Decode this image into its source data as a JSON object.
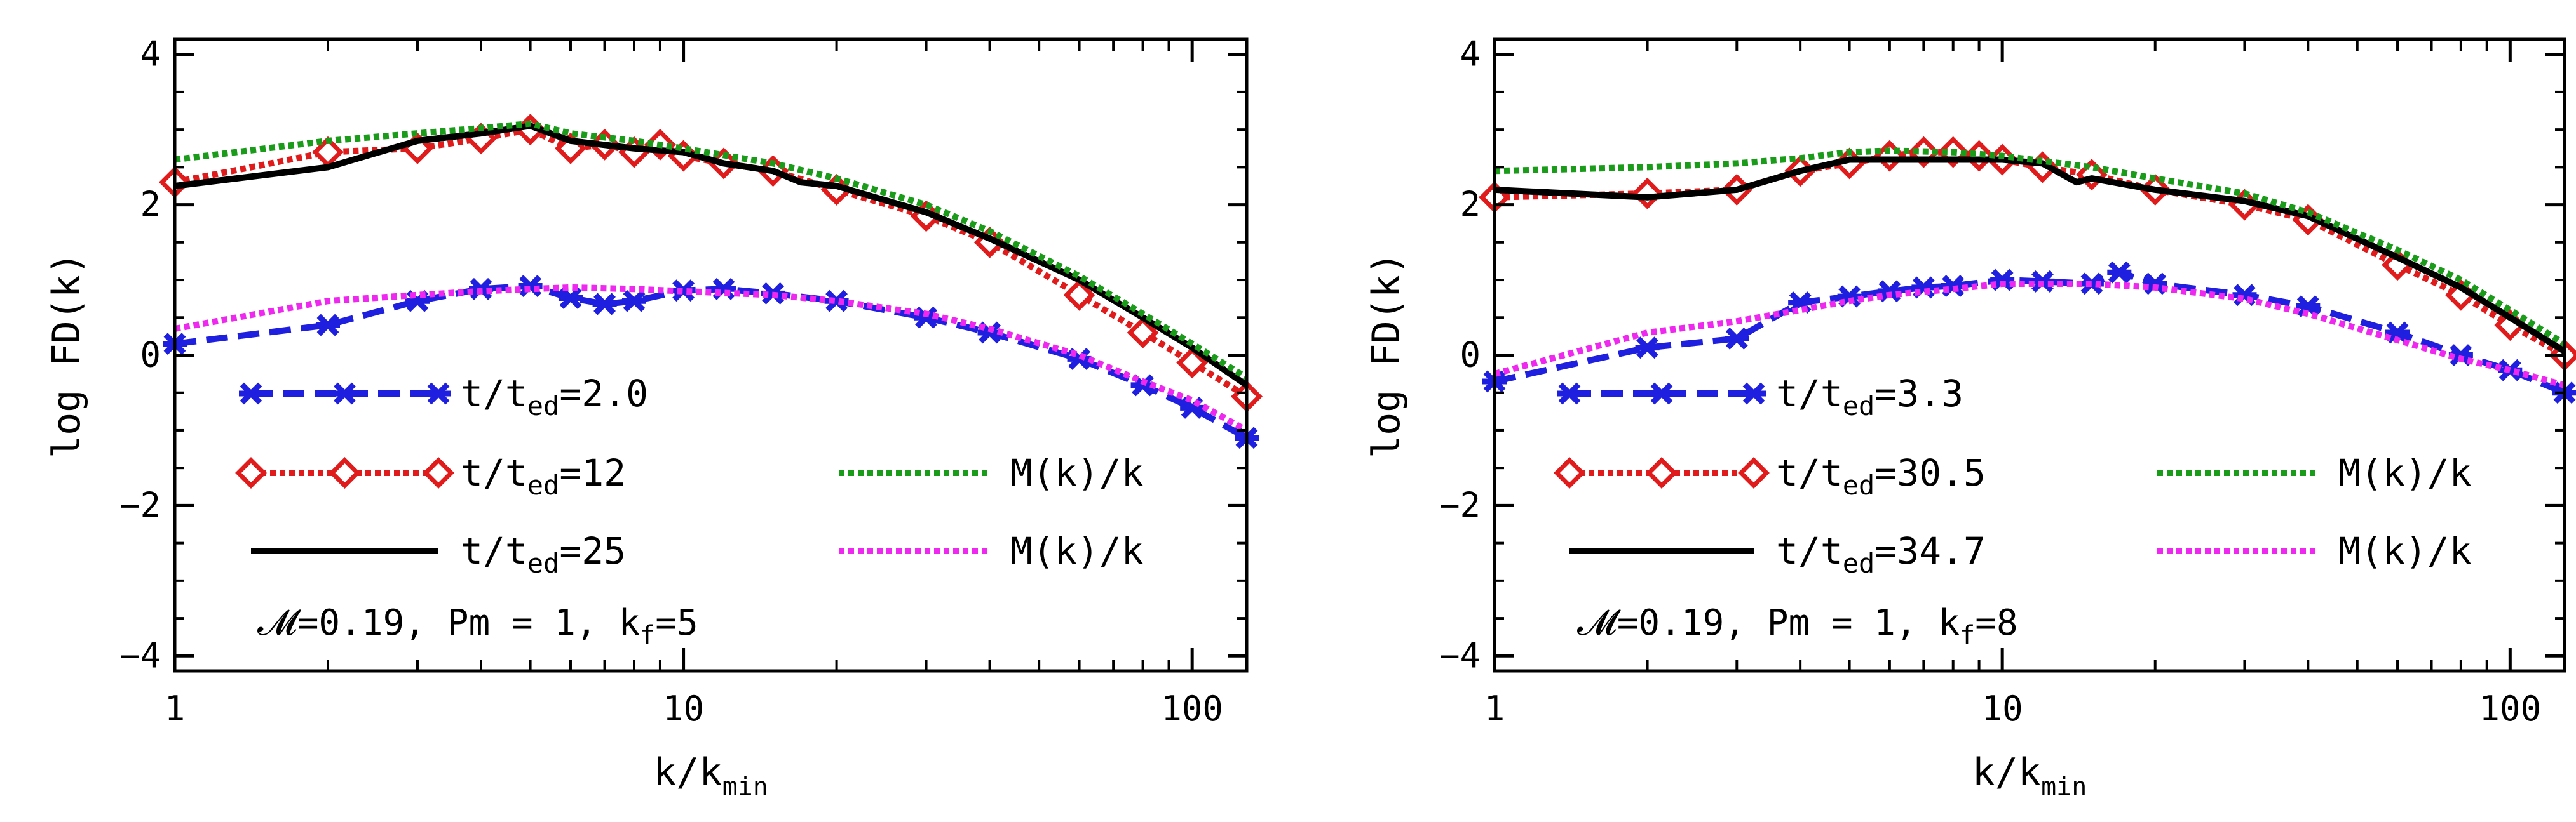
{
  "chart_data": [
    {
      "type": "line",
      "xscale": "log",
      "xlim": [
        1,
        128
      ],
      "ylim": [
        -4.2,
        4.2
      ],
      "xlabel": "k/k",
      "xlabel_sub": "min",
      "ylabel": "log FD(k)",
      "xticks": [
        1,
        10,
        100
      ],
      "xtick_labels": [
        "1",
        "10",
        "100"
      ],
      "yticks": [
        -4,
        -2,
        0,
        2,
        4
      ],
      "ytick_labels": [
        "−4",
        "−2",
        "0",
        "2",
        "4"
      ],
      "annotation": {
        "prefix": "𝓜=0.19, Pm = 1, k",
        "sub": "f",
        "suffix": "=5"
      },
      "series": [
        {
          "id": "a-kin-early",
          "label_main": "t/t",
          "label_sub": "ed",
          "label_tail": "=2.0",
          "color": "#1f1fe0",
          "style": "dashed",
          "marker": "star",
          "x": [
            1,
            2,
            3,
            4,
            5,
            6,
            7,
            8,
            10,
            12,
            15,
            20,
            30,
            40,
            60,
            80,
            100,
            128
          ],
          "y": [
            0.15,
            0.4,
            0.72,
            0.88,
            0.92,
            0.76,
            0.68,
            0.72,
            0.86,
            0.88,
            0.82,
            0.72,
            0.5,
            0.3,
            -0.05,
            -0.4,
            -0.7,
            -1.1
          ]
        },
        {
          "id": "a-kin-mid",
          "label_main": "t/t",
          "label_sub": "ed",
          "label_tail": "=12",
          "color": "#e01b1b",
          "style": "dotted",
          "marker": "diamond",
          "x": [
            1,
            2,
            3,
            4,
            5,
            6,
            7,
            8,
            9,
            10,
            12,
            15,
            20,
            30,
            40,
            60,
            80,
            100,
            128
          ],
          "y": [
            2.3,
            2.7,
            2.75,
            2.88,
            3.0,
            2.75,
            2.8,
            2.7,
            2.8,
            2.65,
            2.55,
            2.45,
            2.2,
            1.85,
            1.5,
            0.8,
            0.3,
            -0.1,
            -0.55
          ]
        },
        {
          "id": "a-kin-late",
          "label_main": "t/t",
          "label_sub": "ed",
          "label_tail": "=25",
          "color": "#000000",
          "style": "solid",
          "marker": "none",
          "x": [
            1,
            2,
            3,
            4,
            5,
            6,
            8,
            10,
            12,
            15,
            17,
            20,
            30,
            40,
            60,
            80,
            100,
            128
          ],
          "y": [
            2.25,
            2.5,
            2.85,
            2.95,
            3.05,
            2.85,
            2.75,
            2.7,
            2.55,
            2.45,
            2.3,
            2.25,
            1.9,
            1.55,
            1.0,
            0.5,
            0.1,
            -0.4
          ]
        },
        {
          "id": "a-mag-green",
          "label_main": "M(k)/k",
          "label_sub": "",
          "label_tail": "",
          "color": "#1a9c1a",
          "style": "dotted",
          "marker": "none",
          "x": [
            1,
            2,
            3,
            4,
            5,
            6,
            8,
            10,
            15,
            20,
            30,
            40,
            60,
            80,
            100,
            128
          ],
          "y": [
            2.6,
            2.85,
            2.95,
            3.02,
            3.08,
            2.95,
            2.85,
            2.75,
            2.55,
            2.35,
            2.0,
            1.65,
            1.05,
            0.55,
            0.15,
            -0.3
          ]
        },
        {
          "id": "a-mag-magenta",
          "label_main": "M(k)/k",
          "label_sub": "",
          "label_tail": "",
          "color": "#ee28ee",
          "style": "dotted",
          "marker": "none",
          "x": [
            1,
            2,
            3,
            4,
            5,
            6,
            8,
            10,
            15,
            20,
            30,
            40,
            60,
            80,
            100,
            128
          ],
          "y": [
            0.35,
            0.72,
            0.8,
            0.85,
            0.88,
            0.9,
            0.88,
            0.85,
            0.8,
            0.72,
            0.55,
            0.35,
            0.0,
            -0.35,
            -0.6,
            -1.0
          ]
        }
      ]
    },
    {
      "type": "line",
      "xscale": "log",
      "xlim": [
        1,
        128
      ],
      "ylim": [
        -4.2,
        4.2
      ],
      "xlabel": "k/k",
      "xlabel_sub": "min",
      "ylabel": "log FD(k)",
      "xticks": [
        1,
        10,
        100
      ],
      "xtick_labels": [
        "1",
        "10",
        "100"
      ],
      "yticks": [
        -4,
        -2,
        0,
        2,
        4
      ],
      "ytick_labels": [
        "−4",
        "−2",
        "0",
        "2",
        "4"
      ],
      "annotation": {
        "prefix": "𝓜=0.19, Pm = 1, k",
        "sub": "f",
        "suffix": "=8"
      },
      "series": [
        {
          "id": "b-kin-early",
          "label_main": "t/t",
          "label_sub": "ed",
          "label_tail": "=3.3",
          "color": "#1f1fe0",
          "style": "dashed",
          "marker": "star",
          "x": [
            1,
            2,
            3,
            4,
            5,
            6,
            7,
            8,
            10,
            12,
            15,
            17,
            20,
            30,
            40,
            60,
            80,
            100,
            128
          ],
          "y": [
            -0.35,
            0.1,
            0.22,
            0.7,
            0.78,
            0.85,
            0.9,
            0.92,
            1.0,
            0.98,
            0.95,
            1.1,
            0.95,
            0.8,
            0.65,
            0.3,
            0.0,
            -0.2,
            -0.5
          ]
        },
        {
          "id": "b-kin-mid",
          "label_main": "t/t",
          "label_sub": "ed",
          "label_tail": "=30.5",
          "color": "#e01b1b",
          "style": "dotted",
          "marker": "diamond",
          "x": [
            1,
            2,
            3,
            4,
            5,
            6,
            7,
            8,
            9,
            10,
            12,
            15,
            20,
            30,
            40,
            60,
            80,
            100,
            128
          ],
          "y": [
            2.1,
            2.15,
            2.2,
            2.45,
            2.55,
            2.65,
            2.7,
            2.7,
            2.65,
            2.6,
            2.5,
            2.4,
            2.2,
            2.0,
            1.8,
            1.2,
            0.8,
            0.4,
            0.0
          ]
        },
        {
          "id": "b-kin-late",
          "label_main": "t/t",
          "label_sub": "ed",
          "label_tail": "=34.7",
          "color": "#000000",
          "style": "solid",
          "marker": "none",
          "x": [
            1,
            2,
            3,
            4,
            5,
            6,
            8,
            10,
            12,
            14,
            15,
            20,
            30,
            40,
            60,
            80,
            100,
            128
          ],
          "y": [
            2.2,
            2.1,
            2.2,
            2.45,
            2.6,
            2.6,
            2.6,
            2.6,
            2.55,
            2.3,
            2.35,
            2.2,
            2.05,
            1.85,
            1.3,
            0.9,
            0.5,
            0.05
          ]
        },
        {
          "id": "b-mag-green",
          "label_main": "M(k)/k",
          "label_sub": "",
          "label_tail": "",
          "color": "#1a9c1a",
          "style": "dotted",
          "marker": "none",
          "x": [
            1,
            2,
            3,
            4,
            5,
            6,
            8,
            10,
            15,
            20,
            30,
            40,
            60,
            80,
            100,
            128
          ],
          "y": [
            2.45,
            2.5,
            2.55,
            2.62,
            2.7,
            2.72,
            2.7,
            2.65,
            2.5,
            2.35,
            2.15,
            1.9,
            1.4,
            1.0,
            0.6,
            0.15
          ]
        },
        {
          "id": "b-mag-magenta",
          "label_main": "M(k)/k",
          "label_sub": "",
          "label_tail": "",
          "color": "#ee28ee",
          "style": "dotted",
          "marker": "none",
          "x": [
            1,
            2,
            3,
            4,
            5,
            6,
            8,
            10,
            15,
            20,
            30,
            40,
            60,
            80,
            100,
            128
          ],
          "y": [
            -0.25,
            0.3,
            0.45,
            0.6,
            0.72,
            0.8,
            0.88,
            0.95,
            0.95,
            0.9,
            0.75,
            0.55,
            0.2,
            -0.05,
            -0.2,
            -0.4
          ]
        }
      ]
    }
  ]
}
